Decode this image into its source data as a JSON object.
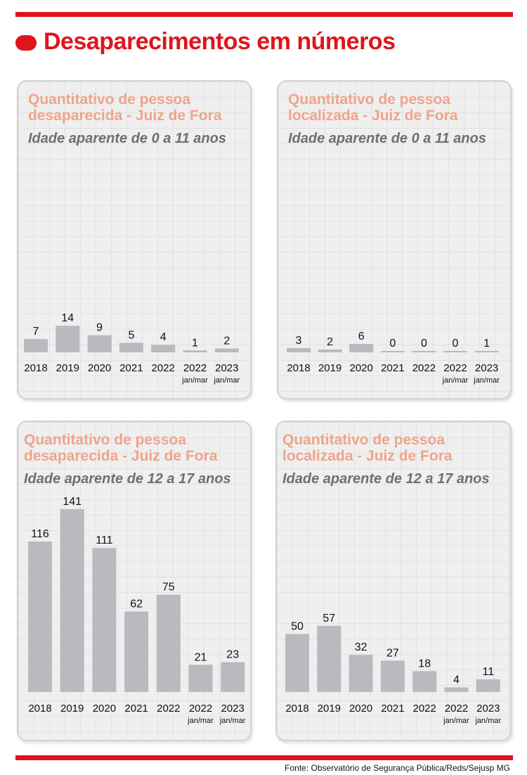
{
  "header": {
    "title": "Desaparecimentos em números"
  },
  "footer": {
    "source": "Fonte:  Observatório de Segurança Pública/Reds/Sejusp MG"
  },
  "chart_data": [
    {
      "type": "bar",
      "title": "Quantitativo de pessoa desaparecida - Juiz de Fora",
      "subtitle": "Idade aparente de 0 a 11 anos",
      "categories": [
        "2018",
        "2019",
        "2020",
        "2021",
        "2022",
        "2022",
        "2023"
      ],
      "category_sublabels": [
        "",
        "",
        "",
        "",
        "",
        "jan/mar",
        "jan/mar"
      ],
      "values": [
        7,
        14,
        9,
        5,
        4,
        1,
        2
      ]
    },
    {
      "type": "bar",
      "title": "Quantitativo de pessoa localizada - Juiz de Fora",
      "subtitle": "Idade aparente de 0 a 11 anos",
      "categories": [
        "2018",
        "2019",
        "2020",
        "2021",
        "2022",
        "2022",
        "2023"
      ],
      "category_sublabels": [
        "",
        "",
        "",
        "",
        "",
        "jan/mar",
        "jan/mar"
      ],
      "values": [
        3,
        2,
        6,
        0,
        0,
        0,
        1
      ]
    },
    {
      "type": "bar",
      "title": "Quantitativo de pessoa desaparecida - Juiz de Fora",
      "subtitle": "Idade aparente de 12 a 17 anos",
      "categories": [
        "2018",
        "2019",
        "2020",
        "2021",
        "2022",
        "2022",
        "2023"
      ],
      "category_sublabels": [
        "",
        "",
        "",
        "",
        "",
        "jan/mar",
        "jan/mar"
      ],
      "values": [
        116,
        141,
        111,
        62,
        75,
        21,
        23
      ]
    },
    {
      "type": "bar",
      "title": "Quantitativo de pessoa localizada - Juiz de Fora",
      "subtitle": "Idade aparente de 12 a 17 anos",
      "categories": [
        "2018",
        "2019",
        "2020",
        "2021",
        "2022",
        "2022",
        "2023"
      ],
      "category_sublabels": [
        "",
        "",
        "",
        "",
        "",
        "jan/mar",
        "jan/mar"
      ],
      "values": [
        50,
        57,
        32,
        27,
        18,
        4,
        11
      ]
    }
  ]
}
